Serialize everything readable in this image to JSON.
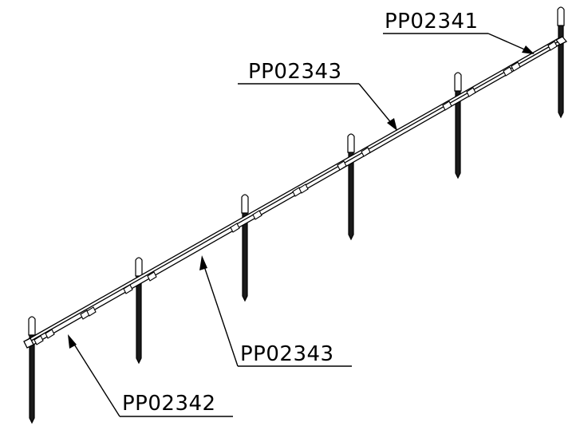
{
  "callouts": [
    {
      "label": "PP02341"
    },
    {
      "label": "PP02343"
    },
    {
      "label": "PP02343"
    },
    {
      "label": "PP02342"
    }
  ],
  "colors": {
    "line": "#000000",
    "background": "#ffffff"
  }
}
